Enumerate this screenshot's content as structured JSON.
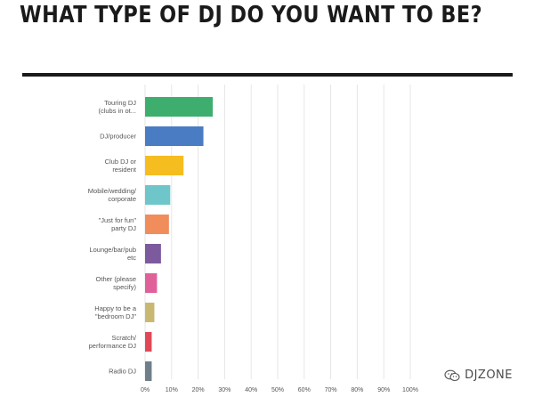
{
  "header": {
    "title": "WHAT TYPE OF DJ DO YOU WANT TO BE?"
  },
  "watermark": {
    "icon": "wechat-icon",
    "text": "DJZONE"
  },
  "chart_data": {
    "type": "bar",
    "orientation": "horizontal",
    "categories": [
      [
        "Touring DJ",
        "(clubs in ot..."
      ],
      [
        "DJ/producer"
      ],
      [
        "Club DJ or",
        "resident"
      ],
      [
        "Mobile/wedding/",
        "corporate"
      ],
      [
        "\"Just for fun\"",
        "party DJ"
      ],
      [
        "Lounge/bar/pub",
        "etc"
      ],
      [
        "Other (please",
        "specify)"
      ],
      [
        "Happy to be a",
        "\"bedroom DJ\""
      ],
      [
        "Scratch/",
        "performance DJ"
      ],
      [
        "Radio DJ"
      ]
    ],
    "values": [
      25.5,
      22,
      14.5,
      9.5,
      9,
      6,
      4.5,
      3.5,
      2.5,
      2.5
    ],
    "colors": [
      "#3dae6e",
      "#4a7cc4",
      "#f5bd1f",
      "#6ec6ca",
      "#f08d5a",
      "#7d5a9e",
      "#e0609a",
      "#c9b872",
      "#e04858",
      "#6e7f8a"
    ],
    "xlim": [
      0,
      100
    ],
    "xticks": [
      "0%",
      "10%",
      "20%",
      "30%",
      "40%",
      "50%",
      "60%",
      "70%",
      "80%",
      "90%",
      "100%"
    ],
    "grid": true
  }
}
